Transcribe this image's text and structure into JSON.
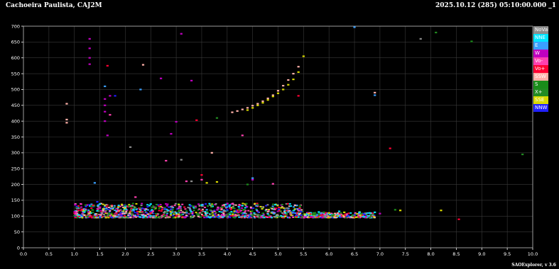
{
  "header": {
    "station": "Cachoeira Paulista, CAJ2M",
    "timestamp": "2025.10.12 (285) 05:10:00.000 _1"
  },
  "footer": {
    "software": "SAOExplorer, v 3.6"
  },
  "legend": [
    {
      "label": "NoVal",
      "color": "#8c8c8c"
    },
    {
      "label": "NNE",
      "color": "#00e5ff"
    },
    {
      "label": "E",
      "color": "#3aa0ff"
    },
    {
      "label": "W",
      "color": "#c000c0"
    },
    {
      "label": "Vo-",
      "color": "#ff40b0"
    },
    {
      "label": "Vo+",
      "color": "#ff0033"
    },
    {
      "label": "SSW",
      "color": "#ffb0a8"
    },
    {
      "label": "S",
      "color": "#1a8c1a"
    },
    {
      "label": "X+",
      "color": "#228b22"
    },
    {
      "label": "SSE",
      "color": "#d8d800"
    },
    {
      "label": "NNW",
      "color": "#2020ff"
    }
  ],
  "chart_data": {
    "type": "scatter",
    "title": "",
    "xlabel": "",
    "ylabel": "",
    "xlim": [
      0,
      10
    ],
    "ylim": [
      0,
      700
    ],
    "x_ticks": [
      "0.0",
      "0.5",
      "1.0",
      "1.5",
      "2.0",
      "2.5",
      "3.0",
      "3.5",
      "4.0",
      "4.5",
      "5.0",
      "5.5",
      "6.0",
      "6.5",
      "7.0",
      "7.5",
      "8.0",
      "8.5",
      "9.0",
      "9.5",
      "10.0"
    ],
    "y_ticks": [
      "0",
      "50",
      "100",
      "150",
      "200",
      "250",
      "300",
      "350",
      "400",
      "450",
      "500",
      "550",
      "600",
      "650",
      "700"
    ],
    "grid": true,
    "legend_position": "right",
    "series": [
      {
        "name": "SSW",
        "color": "#ffb0a8",
        "points": [
          [
            4.1,
            428
          ],
          [
            4.2,
            432
          ],
          [
            4.3,
            437
          ],
          [
            4.4,
            442
          ],
          [
            4.5,
            449
          ],
          [
            4.6,
            455
          ],
          [
            4.7,
            463
          ],
          [
            4.8,
            472
          ],
          [
            4.9,
            482
          ],
          [
            5.0,
            496
          ],
          [
            5.1,
            512
          ],
          [
            5.2,
            530
          ],
          [
            5.3,
            550
          ],
          [
            5.4,
            572
          ],
          [
            0.85,
            455
          ],
          [
            0.85,
            405
          ],
          [
            0.85,
            395
          ],
          [
            3.7,
            300
          ],
          [
            6.9,
            490
          ],
          [
            2.35,
            578
          ],
          [
            1.2,
            103
          ],
          [
            1.8,
            100
          ],
          [
            2.4,
            101
          ],
          [
            3.2,
            102
          ]
        ]
      },
      {
        "name": "SSE",
        "color": "#d8d800",
        "points": [
          [
            4.4,
            435
          ],
          [
            4.5,
            442
          ],
          [
            4.6,
            450
          ],
          [
            4.7,
            458
          ],
          [
            4.8,
            467
          ],
          [
            4.9,
            478
          ],
          [
            5.0,
            488
          ],
          [
            5.1,
            500
          ],
          [
            5.2,
            515
          ],
          [
            5.3,
            532
          ],
          [
            5.4,
            555
          ],
          [
            5.5,
            605
          ],
          [
            3.6,
            205
          ],
          [
            3.8,
            208
          ],
          [
            7.4,
            118
          ],
          [
            8.2,
            118
          ],
          [
            5.6,
            108
          ],
          [
            6.0,
            110
          ],
          [
            6.3,
            112
          ],
          [
            6.6,
            113
          ]
        ]
      },
      {
        "name": "W",
        "color": "#c000c0",
        "points": [
          [
            1.3,
            660
          ],
          [
            1.3,
            630
          ],
          [
            1.3,
            600
          ],
          [
            1.3,
            580
          ],
          [
            1.6,
            470
          ],
          [
            1.6,
            450
          ],
          [
            1.6,
            430
          ],
          [
            1.6,
            400
          ],
          [
            1.65,
            355
          ],
          [
            1.7,
            480
          ],
          [
            2.7,
            535
          ],
          [
            3.1,
            676
          ],
          [
            3.3,
            528
          ],
          [
            3.0,
            398
          ],
          [
            2.9,
            360
          ],
          [
            4.5,
            215
          ],
          [
            7.0,
            108
          ]
        ]
      },
      {
        "name": "Vo+",
        "color": "#ff0033",
        "points": [
          [
            1.3,
            98
          ],
          [
            1.65,
            575
          ],
          [
            3.4,
            403
          ],
          [
            7.2,
            314
          ],
          [
            8.55,
            90
          ],
          [
            5.4,
            480
          ],
          [
            3.5,
            230
          ],
          [
            2.5,
            110
          ]
        ]
      },
      {
        "name": "Vo-",
        "color": "#ff40b0",
        "points": [
          [
            1.7,
            420
          ],
          [
            2.8,
            275
          ],
          [
            3.2,
            210
          ],
          [
            3.5,
            215
          ],
          [
            4.3,
            355
          ],
          [
            4.9,
            202
          ],
          [
            2.2,
            160
          ]
        ]
      },
      {
        "name": "E",
        "color": "#3aa0ff",
        "points": [
          [
            1.4,
            205
          ],
          [
            2.3,
            500
          ],
          [
            4.5,
            220
          ],
          [
            6.5,
            697
          ],
          [
            6.9,
            482
          ],
          [
            1.6,
            510
          ],
          [
            3.6,
            120
          ],
          [
            5.2,
            113
          ]
        ]
      },
      {
        "name": "NNE",
        "color": "#00e5ff",
        "points": [
          [
            6.6,
            112
          ],
          [
            6.8,
            110
          ],
          [
            6.9,
            112
          ],
          [
            5.8,
            113
          ],
          [
            6.2,
            115
          ],
          [
            1.5,
            138
          ],
          [
            2.5,
            138
          ],
          [
            3.5,
            135
          ],
          [
            4.3,
            133
          ]
        ]
      },
      {
        "name": "S",
        "color": "#1a8c1a",
        "points": [
          [
            8.8,
            652
          ],
          [
            4.4,
            200
          ],
          [
            7.3,
            120
          ],
          [
            5.9,
            112
          ],
          [
            2.2,
            125
          ],
          [
            3.9,
            128
          ]
        ]
      },
      {
        "name": "X+",
        "color": "#228b22",
        "points": [
          [
            8.1,
            680
          ],
          [
            9.8,
            295
          ],
          [
            5.7,
            110
          ],
          [
            3.8,
            410
          ]
        ]
      },
      {
        "name": "NoVal",
        "color": "#8c8c8c",
        "points": [
          [
            7.8,
            660
          ],
          [
            2.1,
            318
          ],
          [
            3.1,
            278
          ],
          [
            3.3,
            210
          ],
          [
            3.6,
            100
          ],
          [
            4.6,
            100
          ]
        ]
      },
      {
        "name": "NNW",
        "color": "#2020ff",
        "points": [
          [
            1.8,
            480
          ],
          [
            1.45,
            145
          ],
          [
            4.0,
            120
          ],
          [
            2.9,
            122
          ]
        ]
      }
    ],
    "band": {
      "description_from_image": "dense E-layer echoes",
      "x_range": [
        1.0,
        6.9
      ],
      "y_range": [
        95,
        140
      ]
    }
  }
}
